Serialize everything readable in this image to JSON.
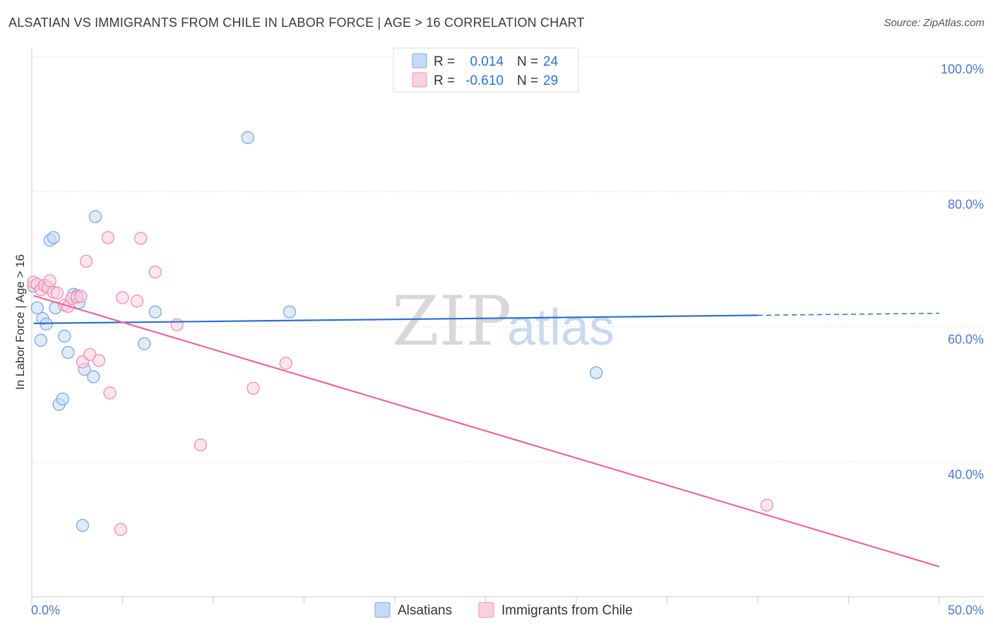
{
  "header": {
    "title": "ALSATIAN VS IMMIGRANTS FROM CHILE IN LABOR FORCE | AGE > 16 CORRELATION CHART",
    "source": "Source: ZipAtlas.com"
  },
  "watermark": {
    "zip": "ZIP",
    "atlas": "atlas"
  },
  "legend_top": {
    "rows": [
      {
        "r_label": "R = ",
        "r_value": "0.014",
        "n_label": "N = ",
        "n_value": "24",
        "color": "#7aa8e8",
        "fill": "#c5daf6"
      },
      {
        "r_label": "R = ",
        "r_value": "-0.610",
        "n_label": "N = ",
        "n_value": "29",
        "color": "#f08fb0",
        "fill": "#fbd0de"
      }
    ]
  },
  "legend_bottom": {
    "items": [
      {
        "label": "Alsatians",
        "color": "#7aa8e8",
        "fill": "#c5daf6"
      },
      {
        "label": "Immigrants from Chile",
        "color": "#f08fb0",
        "fill": "#fbd0de"
      }
    ]
  },
  "chart_data": {
    "type": "scatter",
    "title": "ALSATIAN VS IMMIGRANTS FROM CHILE IN LABOR FORCE | AGE > 16 CORRELATION CHART",
    "xlabel": "",
    "ylabel": "In Labor Force | Age > 16",
    "xlim": [
      0,
      50
    ],
    "ylim": [
      22,
      102
    ],
    "x_tick_labels": [
      "0.0%",
      "50.0%"
    ],
    "y_ticks": [
      40,
      60,
      80,
      100
    ],
    "y_tick_labels": [
      "40.0%",
      "60.0%",
      "80.0%",
      "100.0%"
    ],
    "grid": true,
    "series": [
      {
        "name": "Alsatians",
        "stroke": "#7aa8e8",
        "fill": "#c5daf6",
        "line_color": "#2f6fd0",
        "points": [
          [
            0.1,
            66.0
          ],
          [
            0.3,
            62.8
          ],
          [
            0.5,
            58.0
          ],
          [
            0.6,
            61.2
          ],
          [
            0.8,
            60.4
          ],
          [
            1.0,
            72.8
          ],
          [
            1.2,
            73.2
          ],
          [
            1.3,
            62.8
          ],
          [
            1.5,
            48.5
          ],
          [
            1.7,
            49.3
          ],
          [
            1.8,
            58.6
          ],
          [
            2.0,
            56.2
          ],
          [
            2.3,
            64.8
          ],
          [
            2.5,
            64.6
          ],
          [
            2.6,
            63.6
          ],
          [
            2.8,
            30.6
          ],
          [
            2.9,
            53.7
          ],
          [
            3.4,
            52.6
          ],
          [
            3.5,
            76.3
          ],
          [
            6.2,
            57.5
          ],
          [
            6.8,
            62.2
          ],
          [
            11.9,
            88.0
          ],
          [
            14.2,
            62.2
          ],
          [
            31.1,
            53.2
          ]
        ],
        "trend": {
          "x": [
            0.1,
            40.0
          ],
          "y": [
            60.5,
            61.7
          ]
        },
        "trend_dashed": {
          "x": [
            40.0,
            50.0
          ],
          "y": [
            61.7,
            62.0
          ]
        }
      },
      {
        "name": "Immigrants from Chile",
        "stroke": "#f08fb0",
        "fill": "#fbd0de",
        "line_color": "#e8699a",
        "points": [
          [
            0.1,
            66.6
          ],
          [
            0.3,
            66.3
          ],
          [
            0.5,
            65.5
          ],
          [
            0.7,
            66.1
          ],
          [
            0.9,
            65.8
          ],
          [
            1.0,
            66.8
          ],
          [
            1.2,
            65.1
          ],
          [
            1.4,
            65.0
          ],
          [
            1.8,
            63.2
          ],
          [
            2.0,
            63.0
          ],
          [
            2.2,
            64.2
          ],
          [
            2.5,
            64.4
          ],
          [
            2.7,
            64.5
          ],
          [
            2.8,
            54.8
          ],
          [
            3.0,
            69.7
          ],
          [
            3.2,
            55.9
          ],
          [
            3.7,
            55.0
          ],
          [
            4.3,
            50.2
          ],
          [
            4.2,
            73.2
          ],
          [
            4.9,
            30.0
          ],
          [
            5.0,
            64.3
          ],
          [
            5.8,
            63.8
          ],
          [
            6.0,
            73.1
          ],
          [
            6.8,
            68.1
          ],
          [
            8.0,
            60.3
          ],
          [
            9.3,
            42.5
          ],
          [
            12.2,
            50.9
          ],
          [
            14.0,
            54.6
          ],
          [
            40.5,
            33.6
          ]
        ],
        "trend": {
          "x": [
            0.1,
            50.0
          ],
          "y": [
            64.6,
            24.5
          ]
        }
      }
    ]
  }
}
